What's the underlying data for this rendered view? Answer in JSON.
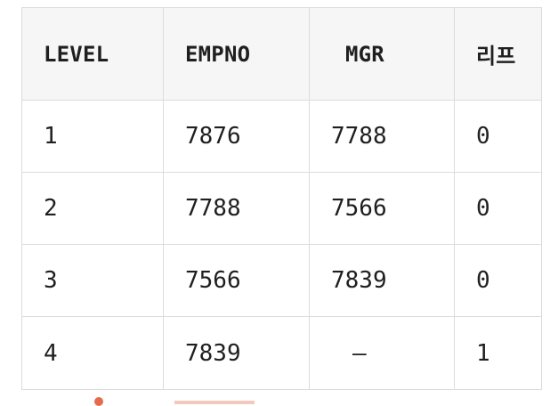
{
  "table": {
    "headers": [
      "LEVEL",
      "EMPNO",
      "MGR",
      "리프"
    ],
    "rows": [
      [
        "1",
        "7876",
        "7788",
        "0"
      ],
      [
        "2",
        "7788",
        "7566",
        "0"
      ],
      [
        "3",
        "7566",
        "7839",
        "0"
      ],
      [
        "4",
        "7839",
        "–",
        "1"
      ]
    ]
  }
}
